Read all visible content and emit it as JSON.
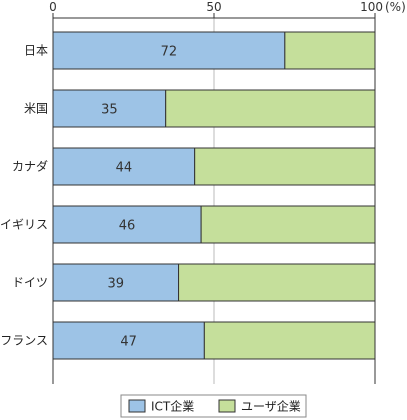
{
  "chart_data": {
    "type": "bar",
    "orientation": "horizontal",
    "stacked": true,
    "categories": [
      "日本",
      "米国",
      "カナダ",
      "イギリス",
      "ドイツ",
      "フランス"
    ],
    "series": [
      {
        "name": "ICT企業",
        "values": [
          72,
          35,
          44,
          46,
          39,
          47
        ],
        "color": "#9dc3e6"
      },
      {
        "name": "ユーザ企業",
        "values": [
          28,
          65,
          56,
          54,
          61,
          53
        ],
        "color": "#c5df9b"
      }
    ],
    "data_labels": [
      "72",
      "35",
      "44",
      "46",
      "39",
      "47"
    ],
    "xlim": [
      0,
      100
    ],
    "x_ticks": [
      0,
      50,
      100
    ],
    "x_tick_labels": [
      "0",
      "50",
      "100"
    ],
    "x_unit": "(%)",
    "grid": true,
    "legend_position": "bottom-center",
    "border_color": "#333333",
    "grid_color": "#bbbbbb"
  }
}
